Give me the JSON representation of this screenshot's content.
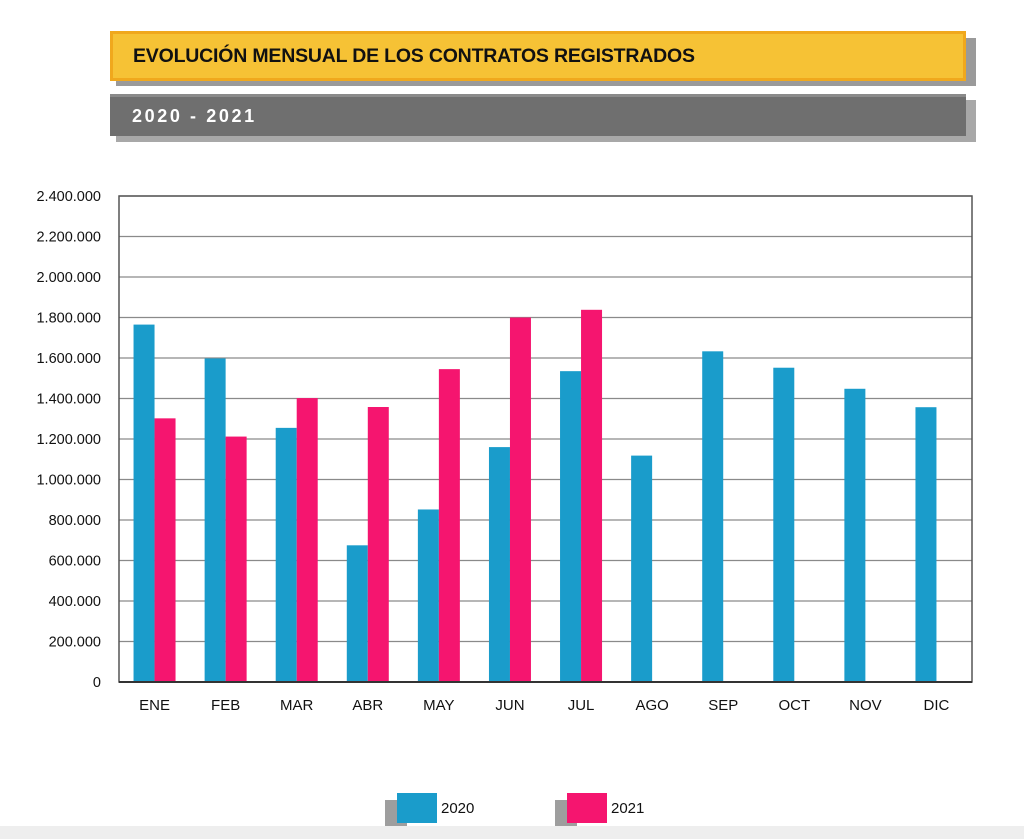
{
  "header": {
    "title": "EVOLUCIÓN MENSUAL DE LOS CONTRATOS REGISTRADOS",
    "subtitle": "2020 - 2021",
    "title_bg": "#f6c235",
    "title_border": "#f0a81d",
    "subtitle_bg": "#6f6f6f"
  },
  "chart_data": {
    "type": "bar",
    "categories": [
      "ENE",
      "FEB",
      "MAR",
      "ABR",
      "MAY",
      "JUN",
      "JUL",
      "AGO",
      "SEP",
      "OCT",
      "NOV",
      "DIC"
    ],
    "series": [
      {
        "name": "2020",
        "color": "#1a9ccb",
        "values": [
          1765000,
          1598000,
          1255000,
          675000,
          852000,
          1160000,
          1535000,
          1118000,
          1633000,
          1552000,
          1448000,
          1357000
        ]
      },
      {
        "name": "2021",
        "color": "#f5156f",
        "values": [
          1302000,
          1212000,
          1402000,
          1358000,
          1545000,
          1800000,
          1838000,
          null,
          null,
          null,
          null,
          null
        ]
      }
    ],
    "ylim": [
      0,
      2400000
    ],
    "yticks": [
      0,
      200000,
      400000,
      600000,
      800000,
      1000000,
      1200000,
      1400000,
      1600000,
      1800000,
      2000000,
      2200000,
      2400000
    ],
    "ytick_labels": [
      "0",
      "200.000",
      "400.000",
      "600.000",
      "800.000",
      "1.000.000",
      "1.200.000",
      "1.400.000",
      "1.600.000",
      "1.800.000",
      "2.000.000",
      "2.200.000",
      "2.400.000"
    ],
    "grid": true,
    "legend_position": "bottom-center"
  }
}
